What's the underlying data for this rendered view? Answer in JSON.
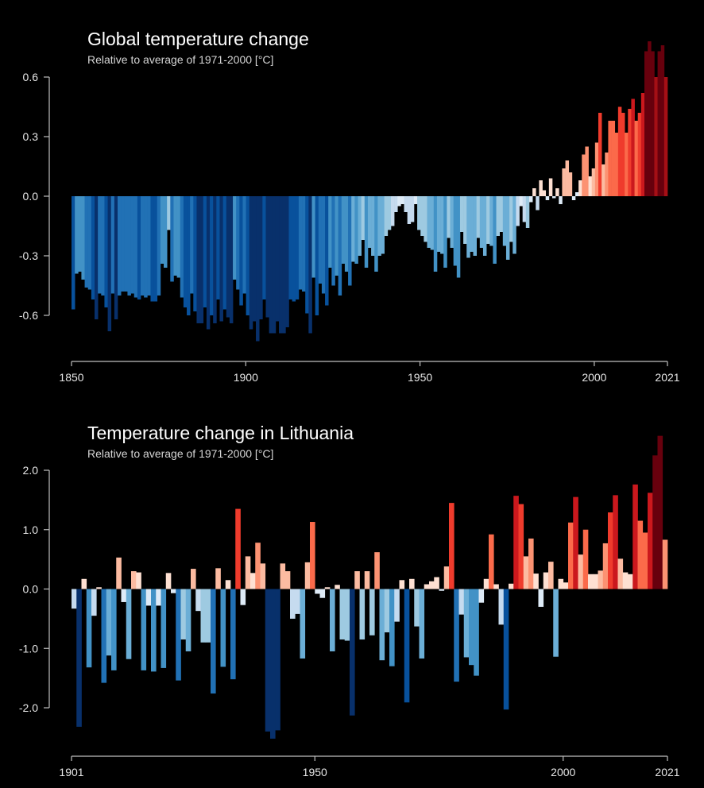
{
  "chart_data": [
    {
      "type": "bar",
      "title": "Global temperature change",
      "subtitle": "Relative to average of 1971-2000  [°C]",
      "xlabel": "",
      "ylabel": "",
      "x_start": 1850,
      "x_end": 2021,
      "ylim": [
        -0.8,
        0.65
      ],
      "y_ticks": [
        0.6,
        0.3,
        0.0,
        -0.3,
        -0.6
      ],
      "y_tick_labels": [
        "0.6",
        "0.3",
        "0.0",
        "-0.3",
        "-0.6"
      ],
      "x_ticks": [
        1850,
        1900,
        1950,
        2000,
        2021
      ],
      "x_tick_labels": [
        "1850",
        "1900",
        "1950",
        "2000",
        "2021"
      ],
      "grid": false,
      "color_scale": [
        "#08306b",
        "#08519c",
        "#2171b5",
        "#4292c6",
        "#6baed6",
        "#9ecae1",
        "#c6dbef",
        "#deebf7",
        "#fee0d2",
        "#fcbba1",
        "#fc9272",
        "#fb6a4a",
        "#ef3b2c",
        "#cb181d",
        "#a50f15",
        "#67000d"
      ],
      "color_domain": [
        -0.7,
        0.75
      ],
      "values": [
        -0.57,
        -0.39,
        -0.38,
        -0.42,
        -0.46,
        -0.47,
        -0.52,
        -0.62,
        -0.49,
        -0.5,
        -0.56,
        -0.68,
        -0.49,
        -0.62,
        -0.5,
        -0.48,
        -0.48,
        -0.5,
        -0.49,
        -0.51,
        -0.52,
        -0.5,
        -0.51,
        -0.5,
        -0.53,
        -0.53,
        -0.5,
        -0.34,
        -0.36,
        -0.17,
        -0.43,
        -0.4,
        -0.41,
        -0.51,
        -0.56,
        -0.6,
        -0.49,
        -0.58,
        -0.64,
        -0.64,
        -0.56,
        -0.67,
        -0.6,
        -0.64,
        -0.52,
        -0.63,
        -0.57,
        -0.61,
        -0.64,
        -0.42,
        -0.47,
        -0.55,
        -0.49,
        -0.6,
        -0.67,
        -0.63,
        -0.73,
        -0.62,
        -0.52,
        -0.61,
        -0.69,
        -0.69,
        -0.63,
        -0.69,
        -0.69,
        -0.66,
        -0.52,
        -0.53,
        -0.52,
        -0.47,
        -0.48,
        -0.59,
        -0.69,
        -0.41,
        -0.6,
        -0.44,
        -0.49,
        -0.55,
        -0.36,
        -0.45,
        -0.4,
        -0.5,
        -0.34,
        -0.38,
        -0.45,
        -0.33,
        -0.34,
        -0.3,
        -0.22,
        -0.36,
        -0.26,
        -0.3,
        -0.38,
        -0.3,
        -0.29,
        -0.2,
        -0.17,
        -0.15,
        -0.08,
        -0.05,
        -0.04,
        -0.08,
        -0.14,
        -0.13,
        -0.04,
        -0.17,
        -0.2,
        -0.23,
        -0.26,
        -0.27,
        -0.38,
        -0.28,
        -0.29,
        -0.36,
        -0.21,
        -0.26,
        -0.35,
        -0.41,
        -0.18,
        -0.24,
        -0.31,
        -0.28,
        -0.3,
        -0.21,
        -0.26,
        -0.3,
        -0.24,
        -0.25,
        -0.34,
        -0.2,
        -0.18,
        -0.25,
        -0.32,
        -0.23,
        -0.29,
        -0.15,
        -0.05,
        -0.13,
        -0.16,
        -0.03,
        0.04,
        -0.07,
        0.08,
        0.03,
        -0.02,
        0.09,
        -0.01,
        0.04,
        -0.04,
        0.14,
        0.18,
        0.12,
        -0.02,
        0.02,
        0.08,
        0.21,
        0.25,
        0.1,
        0.14,
        0.27,
        0.42,
        0.16,
        0.22,
        0.38,
        0.38,
        0.32,
        0.45,
        0.42,
        0.32,
        0.44,
        0.49,
        0.38,
        0.42,
        0.52,
        0.73,
        0.78,
        0.73,
        0.6,
        0.73,
        0.76,
        0.6
      ]
    },
    {
      "type": "bar",
      "title": "Temperature change in Lithuania",
      "subtitle": "Relative to average of 1971-2000  [°C]",
      "xlabel": "",
      "ylabel": "",
      "x_start": 1901,
      "x_end": 2021,
      "ylim": [
        -2.8,
        2.65
      ],
      "y_ticks": [
        2.0,
        1.0,
        0.0,
        -1.0,
        -2.0
      ],
      "y_tick_labels": [
        "2.0",
        "1.0",
        "0.0",
        "-1.0",
        "-2.0"
      ],
      "x_ticks": [
        1901,
        1950,
        2000,
        2021
      ],
      "x_tick_labels": [
        "1901",
        "1950",
        "2000",
        "2021"
      ],
      "grid": false,
      "color_scale": [
        "#08306b",
        "#08519c",
        "#2171b5",
        "#4292c6",
        "#6baed6",
        "#9ecae1",
        "#c6dbef",
        "#deebf7",
        "#fee0d2",
        "#fcbba1",
        "#fc9272",
        "#fb6a4a",
        "#ef3b2c",
        "#cb181d",
        "#a50f15",
        "#67000d"
      ],
      "color_domain": [
        -2.4,
        2.4
      ],
      "values": [
        -0.33,
        -2.32,
        0.17,
        -1.32,
        -0.45,
        0.03,
        -1.58,
        -1.12,
        -1.37,
        0.53,
        -0.22,
        -1.18,
        0.3,
        0.28,
        -1.37,
        -0.28,
        -1.39,
        -0.28,
        -1.33,
        0.27,
        -0.07,
        -1.54,
        -0.85,
        -1.05,
        0.34,
        -0.37,
        -0.9,
        -0.9,
        -1.76,
        0.35,
        -1.31,
        0.15,
        -1.52,
        1.35,
        -0.27,
        0.55,
        0.27,
        0.78,
        0.43,
        -2.4,
        -2.52,
        -2.38,
        0.43,
        0.3,
        -0.5,
        -0.42,
        -1.17,
        0.45,
        1.13,
        -0.08,
        -0.15,
        0.03,
        -1.05,
        0.07,
        -0.85,
        -0.87,
        -2.13,
        0.3,
        -0.85,
        0.3,
        -0.78,
        0.62,
        -1.2,
        -0.73,
        -1.3,
        -0.55,
        0.15,
        -1.91,
        0.17,
        -0.63,
        -1.17,
        0.08,
        0.13,
        0.2,
        -0.03,
        0.38,
        1.45,
        -1.56,
        -0.43,
        -1.15,
        -1.28,
        -1.46,
        -0.23,
        0.17,
        0.92,
        0.08,
        -0.6,
        -2.03,
        0.09,
        1.57,
        1.43,
        0.55,
        0.85,
        0.26,
        -0.3,
        0.28,
        0.46,
        -1.14,
        0.17,
        0.11,
        1.12,
        1.55,
        0.58,
        1.0,
        0.25,
        0.25,
        0.31,
        0.77,
        1.29,
        1.58,
        0.51,
        0.28,
        0.25,
        1.76,
        1.15,
        0.95,
        1.62,
        2.25,
        2.58,
        0.83
      ]
    }
  ]
}
